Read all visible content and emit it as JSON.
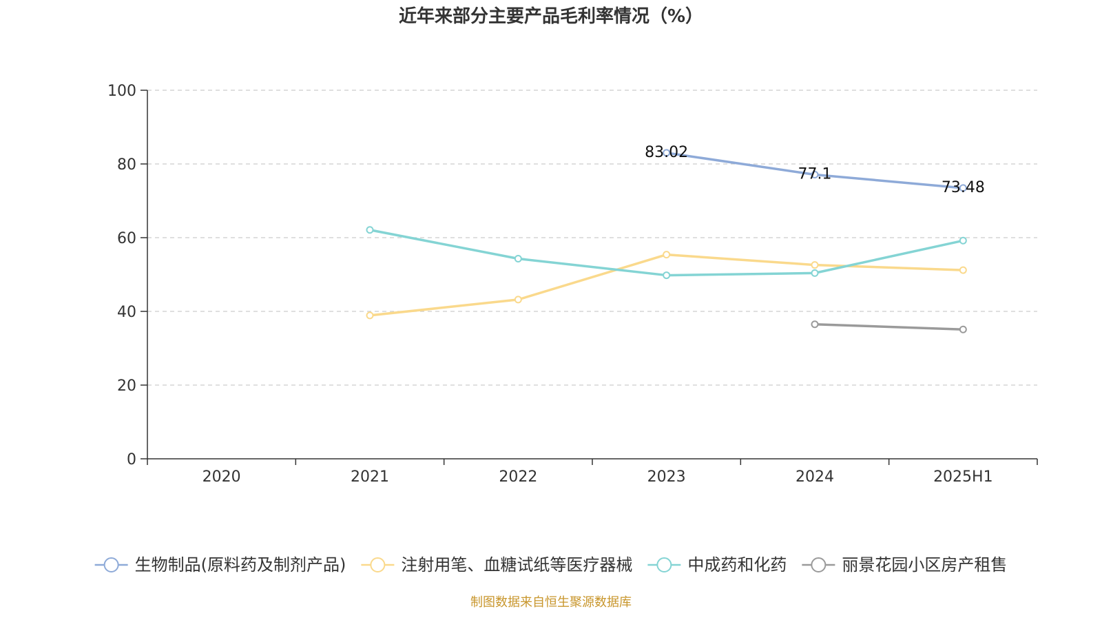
{
  "chart_data": {
    "type": "line",
    "title": "近年来部分主要产品毛利率情况（%）",
    "categories": [
      "2020",
      "2021",
      "2022",
      "2023",
      "2024",
      "2025H1"
    ],
    "ylim": [
      0,
      100
    ],
    "yticks": [
      "0",
      "20",
      "40",
      "60",
      "80",
      "100"
    ],
    "grid": true,
    "legend_position": "bottom",
    "series": [
      {
        "name": "生物制品(原料药及制剂产品)",
        "color": "#8eaad8",
        "values": [
          null,
          null,
          null,
          83.02,
          77.1,
          73.48
        ],
        "labels": [
          null,
          null,
          null,
          "83.02",
          "77.1",
          "73.48"
        ]
      },
      {
        "name": "注射用笔、血糖试纸等医疗器械",
        "color": "#fad98c",
        "values": [
          null,
          38.9,
          43.2,
          55.4,
          52.6,
          51.2
        ],
        "labels": [
          null,
          null,
          null,
          null,
          null,
          null
        ]
      },
      {
        "name": "中成药和化药",
        "color": "#84d4d4",
        "values": [
          null,
          62.1,
          54.3,
          49.8,
          50.4,
          59.2
        ],
        "labels": [
          null,
          null,
          null,
          null,
          null,
          null
        ]
      },
      {
        "name": "丽景花园小区房产租售",
        "color": "#9a9a9a",
        "values": [
          null,
          null,
          null,
          null,
          36.5,
          35.1
        ],
        "labels": [
          null,
          null,
          null,
          null,
          null,
          null
        ]
      }
    ]
  },
  "source": "制图数据来自恒生聚源数据库"
}
